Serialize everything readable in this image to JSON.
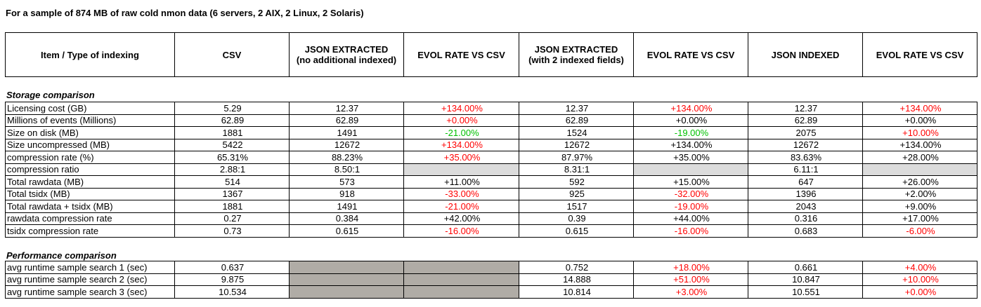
{
  "title": "For a sample of 874 MB of raw cold nmon data (6 servers, 2 AIX, 2 Linux, 2 Solaris)",
  "header": [
    "Item / Type of indexing",
    "CSV",
    "JSON EXTRACTED\n(no additional indexed)",
    "EVOL RATE VS CSV",
    "JSON EXTRACTED\n(with 2 indexed fields)",
    "EVOL RATE VS CSV",
    "JSON INDEXED",
    "EVOL RATE VS CSV"
  ],
  "colors": {
    "positive_change": "#ff0000",
    "negative_change": "#00c000",
    "light_grey": "#dcdcdc",
    "dark_grey": "#b0aca6"
  },
  "storage": {
    "section_title": "Storage comparison",
    "rows": [
      {
        "cells": [
          "Licensing cost (GB)",
          "5.29",
          "12.37",
          "+134.00%",
          "12.37",
          "+134.00%",
          "12.37",
          "+134.00%"
        ],
        "styles": [
          "",
          "",
          "",
          "red",
          "",
          "red",
          "",
          "red"
        ]
      },
      {
        "cells": [
          "Millions of events (Millions)",
          "62.89",
          "62.89",
          "+0.00%",
          "62.89",
          "+0.00%",
          "62.89",
          "+0.00%"
        ],
        "styles": [
          "",
          "",
          "",
          "red",
          "",
          "",
          "",
          ""
        ]
      },
      {
        "cells": [
          "Size on disk (MB)",
          "1881",
          "1491",
          "-21.00%",
          "1524",
          "-19.00%",
          "2075",
          "+10.00%"
        ],
        "styles": [
          "",
          "",
          "",
          "green",
          "",
          "green",
          "",
          "red"
        ]
      },
      {
        "cells": [
          "Size uncompressed (MB)",
          "5422",
          "12672",
          "+134.00%",
          "12672",
          "+134.00%",
          "12672",
          "+134.00%"
        ],
        "styles": [
          "",
          "",
          "",
          "red",
          "",
          "",
          "",
          ""
        ]
      },
      {
        "cells": [
          "compression rate (%)",
          "65.31%",
          "88.23%",
          "+35.00%",
          "87.97%",
          "+35.00%",
          "83.63%",
          "+28.00%"
        ],
        "styles": [
          "",
          "",
          "",
          "red",
          "",
          "",
          "",
          ""
        ]
      },
      {
        "cells": [
          "compression ratio",
          "2.88:1",
          "8.50:1",
          "",
          "8.31:1",
          "",
          "6.11:1",
          ""
        ],
        "styles": [
          "",
          "",
          "",
          "greyL",
          "",
          "greyL",
          "",
          "greyL"
        ]
      },
      {
        "cells": [
          "Total rawdata (MB)",
          "514",
          "573",
          "+11.00%",
          "592",
          "+15.00%",
          "647",
          "+26.00%"
        ],
        "styles": [
          "",
          "",
          "",
          "",
          "",
          "",
          "",
          ""
        ]
      },
      {
        "cells": [
          "Total tsidx (MB)",
          "1367",
          "918",
          "-33.00%",
          "925",
          "-32.00%",
          "1396",
          "+2.00%"
        ],
        "styles": [
          "",
          "",
          "",
          "red",
          "",
          "red",
          "",
          ""
        ]
      },
      {
        "cells": [
          "Total rawdata + tsidx (MB)",
          "1881",
          "1491",
          "-21.00%",
          "1517",
          "-19.00%",
          "2043",
          "+9.00%"
        ],
        "styles": [
          "",
          "",
          "",
          "red",
          "",
          "red",
          "",
          ""
        ]
      },
      {
        "cells": [
          "rawdata compression rate",
          "0.27",
          "0.384",
          "+42.00%",
          "0.39",
          "+44.00%",
          "0.316",
          "+17.00%"
        ],
        "styles": [
          "",
          "",
          "",
          "",
          "",
          "",
          "",
          ""
        ]
      },
      {
        "cells": [
          "tsidx compression rate",
          "0.73",
          "0.615",
          "-16.00%",
          "0.615",
          "-16.00%",
          "0.683",
          "-6.00%"
        ],
        "styles": [
          "",
          "",
          "",
          "red",
          "",
          "red",
          "",
          "red"
        ]
      }
    ]
  },
  "performance": {
    "section_title": "Performance comparison",
    "rows": [
      {
        "cells": [
          "avg runtime sample search 1 (sec)",
          "0.637",
          "",
          "",
          "0.752",
          "+18.00%",
          "0.661",
          "+4.00%"
        ],
        "styles": [
          "",
          "",
          "greyD",
          "greyD",
          "",
          "red",
          "",
          "red"
        ]
      },
      {
        "cells": [
          "avg runtime sample search 2 (sec)",
          "9.875",
          "",
          "",
          "14.888",
          "+51.00%",
          "10.847",
          "+10.00%"
        ],
        "styles": [
          "",
          "",
          "greyD",
          "greyD",
          "",
          "red",
          "",
          "red"
        ]
      },
      {
        "cells": [
          "avg runtime sample search 3 (sec)",
          "10.534",
          "",
          "",
          "10.814",
          "+3.00%",
          "10.551",
          "+0.00%"
        ],
        "styles": [
          "",
          "",
          "greyD",
          "greyD",
          "",
          "red",
          "",
          "red"
        ]
      }
    ]
  }
}
